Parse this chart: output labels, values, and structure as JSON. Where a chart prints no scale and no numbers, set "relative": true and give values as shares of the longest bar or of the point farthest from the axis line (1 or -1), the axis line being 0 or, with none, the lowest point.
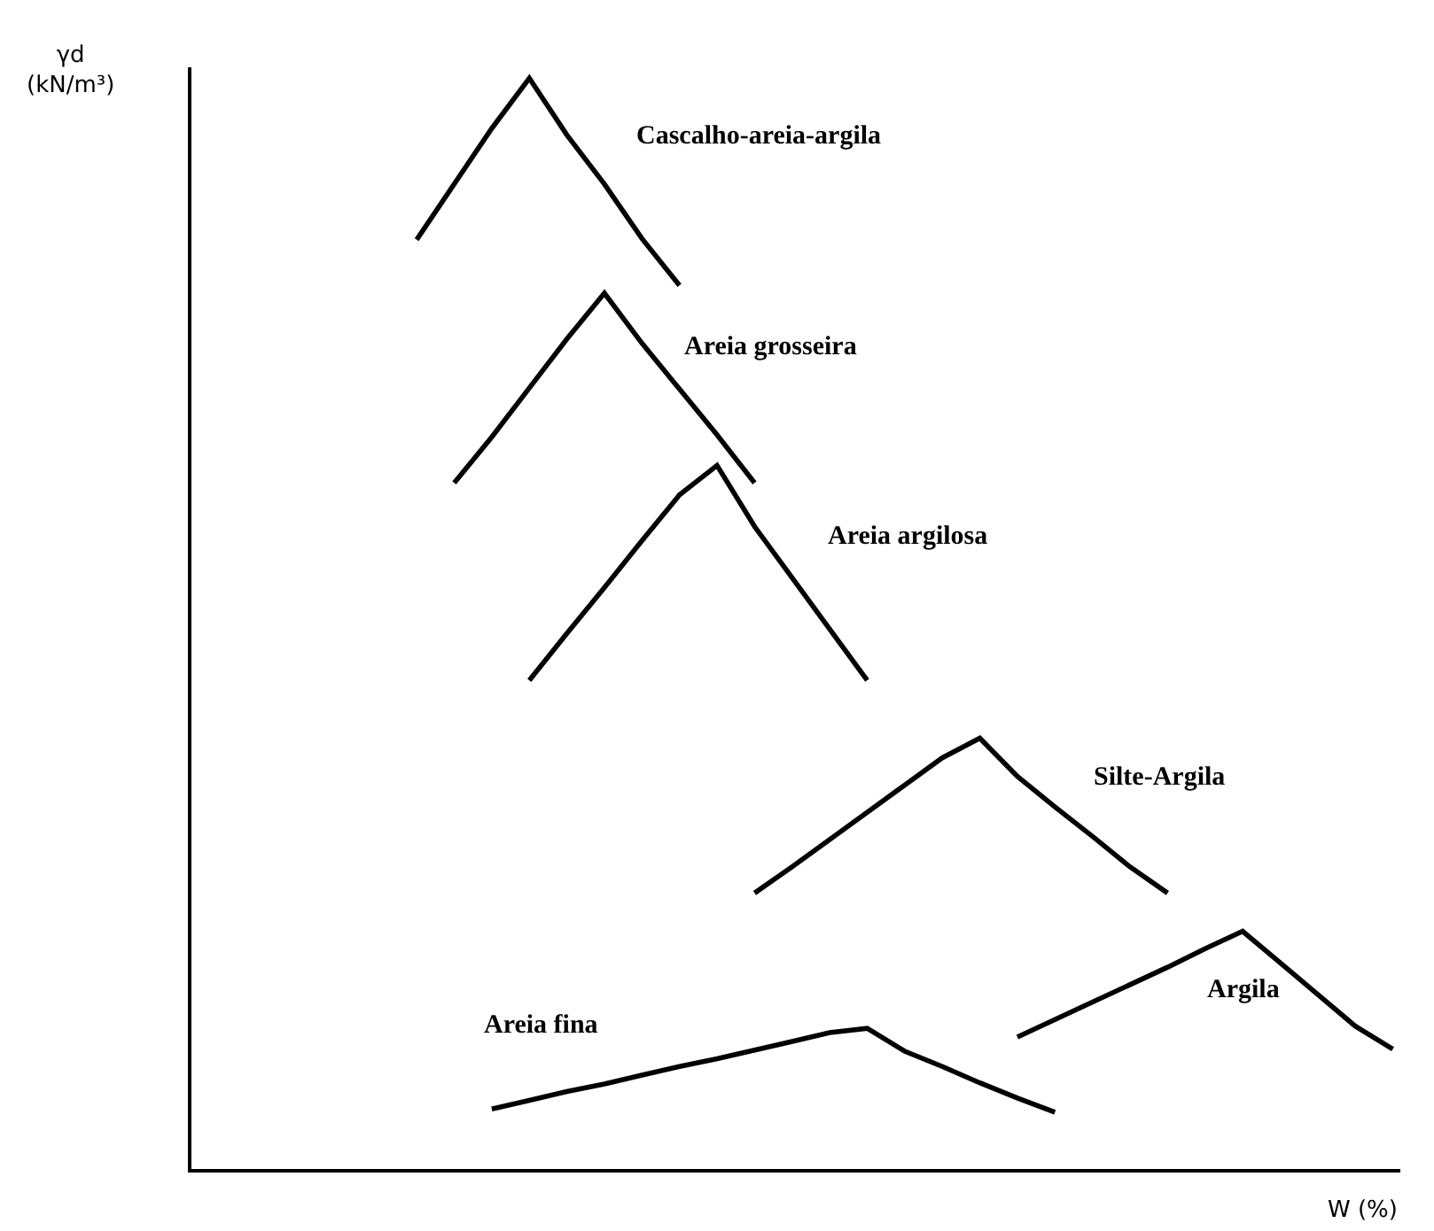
{
  "chart_data": {
    "type": "line",
    "relative": true,
    "xlabel": "W (%)",
    "ylabel": "γd\n(kN/m³)",
    "legend": false,
    "marker": "none",
    "line_style": "solid",
    "categories": [
      null,
      null,
      null,
      null,
      null,
      null,
      null,
      null,
      null,
      null,
      null,
      null,
      null,
      null,
      null,
      null,
      null,
      null,
      null,
      null,
      null,
      null,
      null,
      null,
      null,
      null,
      null,
      null,
      null,
      null,
      null,
      null,
      null
    ],
    "series": [
      {
        "name": "Cascalho-areia-argila",
        "color": "#000000",
        "values": [
          null,
          null,
          null,
          null,
          null,
          null,
          0.852,
          0.903,
          0.954,
          1.0,
          0.948,
          0.903,
          0.853,
          0.81,
          null,
          null,
          null,
          null,
          null,
          null,
          null,
          null,
          null,
          null,
          null,
          null,
          null,
          null,
          null,
          null,
          null,
          null,
          null
        ]
      },
      {
        "name": "Areia grosseira",
        "color": "#000000",
        "values": [
          null,
          null,
          null,
          null,
          null,
          null,
          null,
          0.629,
          0.671,
          0.716,
          0.761,
          0.803,
          0.757,
          0.715,
          0.673,
          0.629,
          null,
          null,
          null,
          null,
          null,
          null,
          null,
          null,
          null,
          null,
          null,
          null,
          null,
          null,
          null,
          null,
          null
        ]
      },
      {
        "name": "Areia argilosa",
        "color": "#000000",
        "values": [
          null,
          null,
          null,
          null,
          null,
          null,
          null,
          null,
          null,
          0.448,
          0.491,
          0.533,
          0.576,
          0.618,
          0.645,
          0.589,
          0.542,
          0.495,
          0.448,
          null,
          null,
          null,
          null,
          null,
          null,
          null,
          null,
          null,
          null,
          null,
          null,
          null,
          null
        ]
      },
      {
        "name": "Silte-Argila",
        "color": "#000000",
        "values": [
          null,
          null,
          null,
          null,
          null,
          null,
          null,
          null,
          null,
          null,
          null,
          null,
          null,
          null,
          null,
          0.253,
          0.277,
          0.302,
          0.327,
          0.352,
          0.377,
          0.395,
          0.36,
          0.332,
          0.305,
          0.277,
          0.253,
          null,
          null,
          null,
          null,
          null,
          null
        ]
      },
      {
        "name": "Argila",
        "color": "#000000",
        "values": [
          null,
          null,
          null,
          null,
          null,
          null,
          null,
          null,
          null,
          null,
          null,
          null,
          null,
          null,
          null,
          null,
          null,
          null,
          null,
          null,
          null,
          null,
          0.121,
          0.137,
          0.153,
          0.169,
          0.185,
          0.202,
          0.218,
          0.189,
          0.16,
          0.131,
          0.11
        ]
      },
      {
        "name": "Areia fina",
        "color": "#000000",
        "values": [
          null,
          null,
          null,
          null,
          null,
          null,
          null,
          null,
          0.055,
          0.063,
          0.071,
          0.078,
          0.086,
          0.094,
          0.101,
          0.109,
          0.117,
          0.125,
          0.129,
          0.108,
          0.094,
          0.079,
          0.065,
          0.052,
          null,
          null,
          null,
          null,
          null,
          null,
          null,
          null,
          null
        ]
      }
    ]
  }
}
